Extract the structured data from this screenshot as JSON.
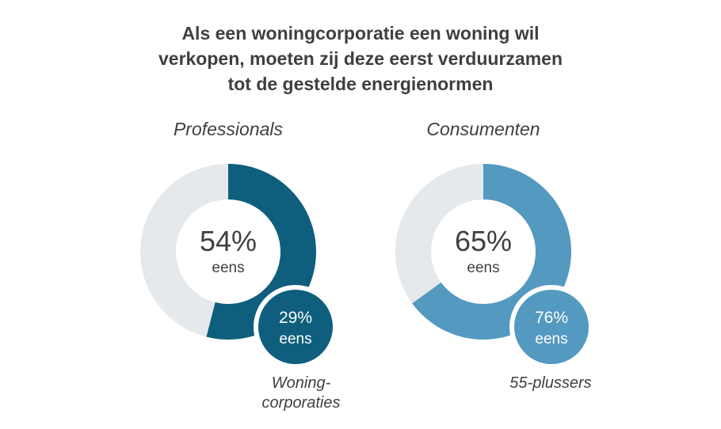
{
  "title": {
    "lines": [
      "Als een woningcorporatie een woning wil",
      "verkopen, moeten zij deze eerst verduurzamen",
      "tot de gestelde energienormen"
    ]
  },
  "colors": {
    "track": "#e5e9ec",
    "professionals": "#0f5e7d",
    "consumenten": "#5499c0"
  },
  "chart_data": [
    {
      "type": "pie",
      "title": "Professionals",
      "donut": true,
      "slices": [
        {
          "label": "eens",
          "value": 54
        },
        {
          "label": "",
          "value": 46
        }
      ],
      "center_value": "54%",
      "center_label": "eens",
      "highlight": {
        "value": "29%",
        "label": "eens",
        "group_lines": [
          "Woning-",
          "corporaties"
        ]
      }
    },
    {
      "type": "pie",
      "title": "Consumenten",
      "donut": true,
      "slices": [
        {
          "label": "eens",
          "value": 65
        },
        {
          "label": "",
          "value": 35
        }
      ],
      "center_value": "65%",
      "center_label": "eens",
      "highlight": {
        "value": "76%",
        "label": "eens",
        "group_lines": [
          "55-plussers"
        ]
      }
    }
  ]
}
